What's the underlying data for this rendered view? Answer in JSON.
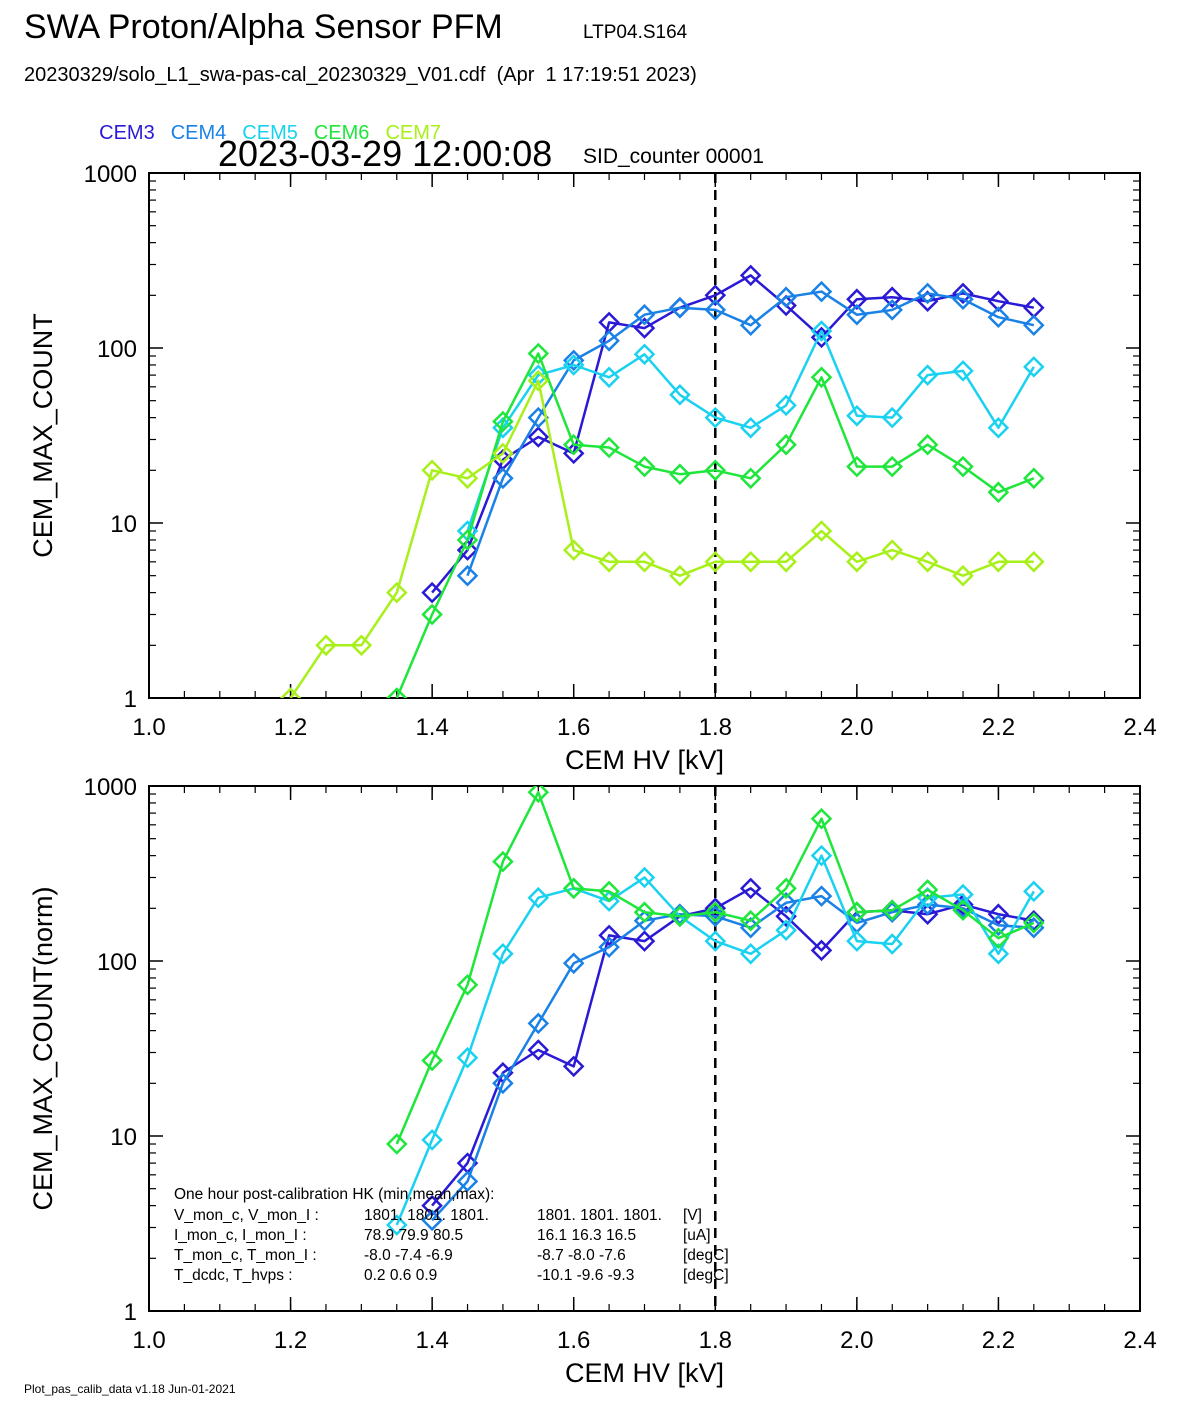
{
  "header": {
    "title": "SWA Proton/Alpha Sensor PFM",
    "tag": "LTP04.S164",
    "file": "20230329/solo_L1_swa-pas-cal_20230329_V01.cdf  (Apr  1 17:19:51 2023)",
    "timestamp": "2023-03-29 12:00:08",
    "sid": "SID_counter 00001"
  },
  "legend": [
    {
      "name": "CEM3",
      "color": "#2a1ad6"
    },
    {
      "name": "CEM4",
      "color": "#1a82e6"
    },
    {
      "name": "CEM5",
      "color": "#1ad2f0"
    },
    {
      "name": "CEM6",
      "color": "#1ee63a"
    },
    {
      "name": "CEM7",
      "color": "#a8f01a"
    }
  ],
  "footer": "Plot_pas_calib_data v1.18 Jun-01-2021",
  "chart_data": [
    {
      "type": "line",
      "ylabel": "CEM_MAX_COUNT",
      "xlabel": "CEM HV [kV]",
      "xlim": [
        1.0,
        2.4
      ],
      "ylim": [
        1,
        1000
      ],
      "yscale": "log",
      "xticks": [
        "1.0",
        "1.2",
        "1.4",
        "1.6",
        "1.8",
        "2.0",
        "2.2",
        "2.4"
      ],
      "yticks": [
        "1",
        "10",
        "100",
        "1000"
      ],
      "vline": 1.8,
      "series": [
        {
          "name": "CEM3",
          "color": "#2a1ad6",
          "x": [
            1.4,
            1.45,
            1.5,
            1.55,
            1.6,
            1.65,
            1.7,
            1.75,
            1.8,
            1.85,
            1.9,
            1.95,
            2.0,
            2.05,
            2.1,
            2.15,
            2.2,
            2.25
          ],
          "y": [
            4,
            7,
            23,
            31,
            25,
            140,
            130,
            170,
            200,
            260,
            175,
            115,
            190,
            195,
            185,
            205,
            185,
            170
          ]
        },
        {
          "name": "CEM4",
          "color": "#1a82e6",
          "x": [
            1.45,
            1.5,
            1.55,
            1.6,
            1.65,
            1.7,
            1.75,
            1.8,
            1.85,
            1.9,
            1.95,
            2.0,
            2.05,
            2.1,
            2.15,
            2.2,
            2.25
          ],
          "y": [
            5,
            18,
            40,
            85,
            110,
            155,
            170,
            165,
            135,
            195,
            210,
            155,
            165,
            205,
            190,
            150,
            135
          ]
        },
        {
          "name": "CEM5",
          "color": "#1ad2f0",
          "x": [
            1.45,
            1.5,
            1.55,
            1.6,
            1.65,
            1.7,
            1.75,
            1.8,
            1.85,
            1.9,
            1.95,
            2.0,
            2.05,
            2.1,
            2.15,
            2.2,
            2.25
          ],
          "y": [
            9,
            35,
            70,
            80,
            68,
            92,
            54,
            40,
            35,
            47,
            125,
            41,
            40,
            70,
            74,
            35,
            78
          ]
        },
        {
          "name": "CEM6",
          "color": "#1ee63a",
          "x": [
            1.35,
            1.4,
            1.45,
            1.5,
            1.55,
            1.6,
            1.65,
            1.7,
            1.75,
            1.8,
            1.85,
            1.9,
            1.95,
            2.0,
            2.05,
            2.1,
            2.15,
            2.2,
            2.25
          ],
          "y": [
            1,
            3,
            8,
            38,
            93,
            28,
            27,
            21,
            19,
            20,
            18,
            28,
            68,
            21,
            21,
            28,
            21,
            15,
            18
          ]
        },
        {
          "name": "CEM7",
          "color": "#a8f01a",
          "x": [
            1.2,
            1.25,
            1.3,
            1.35,
            1.4,
            1.45,
            1.5,
            1.55,
            1.6,
            1.65,
            1.7,
            1.75,
            1.8,
            1.85,
            1.9,
            1.95,
            2.0,
            2.05,
            2.1,
            2.15,
            2.2,
            2.25
          ],
          "y": [
            1,
            2,
            2,
            4,
            20,
            18,
            25,
            65,
            7,
            6,
            6,
            5,
            6,
            6,
            6,
            9,
            6,
            7,
            6,
            5,
            6,
            6
          ]
        }
      ]
    },
    {
      "type": "line",
      "ylabel": "CEM_MAX_COUNT(norm)",
      "xlabel": "CEM HV [kV]",
      "xlim": [
        1.0,
        2.4
      ],
      "ylim": [
        1,
        1000
      ],
      "yscale": "log",
      "xticks": [
        "1.0",
        "1.2",
        "1.4",
        "1.6",
        "1.8",
        "2.0",
        "2.2",
        "2.4"
      ],
      "yticks": [
        "1",
        "10",
        "100",
        "1000"
      ],
      "vline": 1.8,
      "series": [
        {
          "name": "CEM3",
          "color": "#2a1ad6",
          "x": [
            1.4,
            1.45,
            1.5,
            1.55,
            1.6,
            1.65,
            1.7,
            1.75,
            1.8,
            1.85,
            1.9,
            1.95,
            2.0,
            2.05,
            2.1,
            2.15,
            2.2,
            2.25
          ],
          "y": [
            4,
            7,
            23,
            31,
            25,
            140,
            130,
            180,
            200,
            260,
            180,
            115,
            190,
            195,
            185,
            210,
            185,
            170
          ]
        },
        {
          "name": "CEM4",
          "color": "#1a82e6",
          "x": [
            1.4,
            1.45,
            1.5,
            1.55,
            1.6,
            1.65,
            1.7,
            1.75,
            1.8,
            1.85,
            1.9,
            1.95,
            2.0,
            2.05,
            2.1,
            2.15,
            2.2,
            2.25
          ],
          "y": [
            3.3,
            5.5,
            20,
            44,
            97,
            120,
            170,
            185,
            180,
            155,
            215,
            235,
            165,
            190,
            210,
            200,
            160,
            155
          ]
        },
        {
          "name": "CEM5",
          "color": "#1ad2f0",
          "x": [
            1.35,
            1.4,
            1.45,
            1.5,
            1.55,
            1.6,
            1.65,
            1.7,
            1.75,
            1.8,
            1.85,
            1.9,
            1.95,
            2.0,
            2.05,
            2.1,
            2.15,
            2.2,
            2.25
          ],
          "y": [
            3.1,
            9.5,
            28,
            110,
            230,
            260,
            220,
            300,
            180,
            130,
            110,
            150,
            400,
            130,
            125,
            230,
            240,
            110,
            250
          ]
        },
        {
          "name": "CEM6",
          "color": "#1ee63a",
          "x": [
            1.35,
            1.4,
            1.45,
            1.5,
            1.55,
            1.6,
            1.65,
            1.7,
            1.75,
            1.8,
            1.85,
            1.9,
            1.95,
            2.0,
            2.05,
            2.1,
            2.15,
            2.2,
            2.25
          ],
          "y": [
            9,
            27,
            73,
            370,
            920,
            260,
            250,
            190,
            180,
            190,
            170,
            260,
            650,
            190,
            195,
            255,
            195,
            135,
            165
          ]
        }
      ],
      "annotation": {
        "heading": "One hour post-calibration HK (min,mean,max):",
        "rows": [
          [
            "V_mon_c, V_mon_I :",
            "1801.  1801.  1801.",
            "1801.  1801.  1801.",
            "[V]"
          ],
          [
            "I_mon_c,  I_mon_I :",
            "78.9   79.9   80.5",
            "16.1   16.3   16.5",
            "[uA]"
          ],
          [
            "T_mon_c, T_mon_I :",
            "-8.0   -7.4   -6.9",
            "-8.7   -8.0   -7.6",
            "[degC]"
          ],
          [
            "T_dcdc,    T_hvps :",
            "0.2    0.6    0.9",
            "-10.1   -9.6   -9.3",
            "[degC]"
          ]
        ]
      }
    }
  ]
}
